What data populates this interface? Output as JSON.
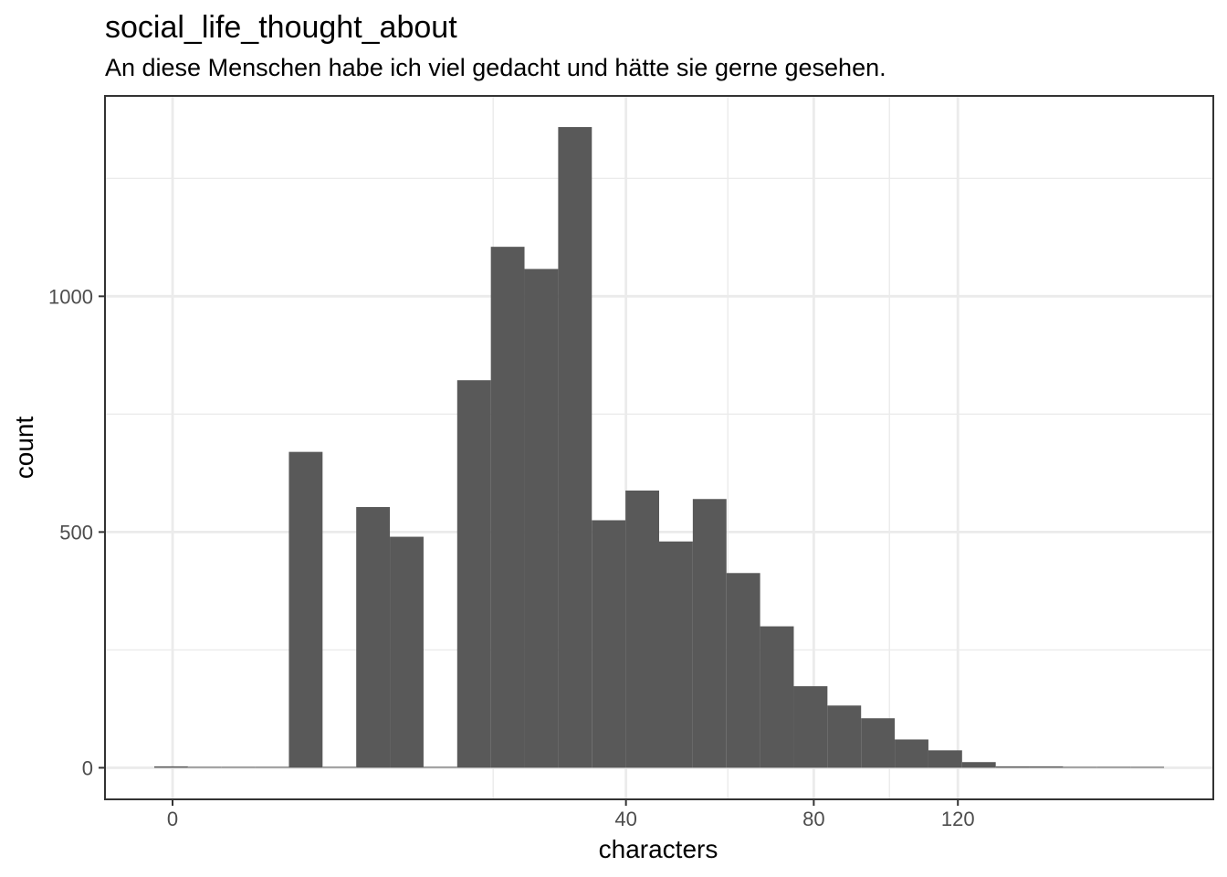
{
  "chart_data": {
    "type": "bar",
    "title": "social_life_thought_about",
    "subtitle": "An diese Menschen habe ich viel gedacht und hätte sie gerne gesehen.",
    "xlabel": "characters",
    "ylabel": "count",
    "x_scale": "sqrt",
    "x_ticks": [
      0,
      40,
      80,
      120
    ],
    "x_tick_labels": [
      "0",
      "40",
      "80",
      "120"
    ],
    "y_ticks": [
      0,
      500,
      1000
    ],
    "y_tick_labels": [
      "0",
      "500",
      "1000"
    ],
    "ylim": [
      -67,
      1425
    ],
    "grid": true,
    "bins": [
      {
        "from_sqrt": -0.255,
        "to_sqrt": 0.2145,
        "count": 3
      },
      {
        "from_sqrt": 0.2145,
        "to_sqrt": 0.684,
        "count": 0
      },
      {
        "from_sqrt": 0.684,
        "to_sqrt": 1.1535,
        "count": 0
      },
      {
        "from_sqrt": 1.1535,
        "to_sqrt": 1.623,
        "count": 0
      },
      {
        "from_sqrt": 1.623,
        "to_sqrt": 2.0925,
        "count": 670
      },
      {
        "from_sqrt": 2.0925,
        "to_sqrt": 2.562,
        "count": 0
      },
      {
        "from_sqrt": 2.562,
        "to_sqrt": 3.0315,
        "count": 553
      },
      {
        "from_sqrt": 3.0315,
        "to_sqrt": 3.501,
        "count": 490
      },
      {
        "from_sqrt": 3.501,
        "to_sqrt": 3.9705,
        "count": 0
      },
      {
        "from_sqrt": 3.9705,
        "to_sqrt": 4.44,
        "count": 822
      },
      {
        "from_sqrt": 4.44,
        "to_sqrt": 4.9095,
        "count": 1105
      },
      {
        "from_sqrt": 4.9095,
        "to_sqrt": 5.379,
        "count": 1058
      },
      {
        "from_sqrt": 5.379,
        "to_sqrt": 5.8485,
        "count": 1359
      },
      {
        "from_sqrt": 5.8485,
        "to_sqrt": 6.318,
        "count": 525
      },
      {
        "from_sqrt": 6.318,
        "to_sqrt": 6.7875,
        "count": 588
      },
      {
        "from_sqrt": 6.7875,
        "to_sqrt": 7.257,
        "count": 480
      },
      {
        "from_sqrt": 7.257,
        "to_sqrt": 7.7265,
        "count": 570
      },
      {
        "from_sqrt": 7.7265,
        "to_sqrt": 8.196,
        "count": 413
      },
      {
        "from_sqrt": 8.196,
        "to_sqrt": 8.6655,
        "count": 300
      },
      {
        "from_sqrt": 8.6655,
        "to_sqrt": 9.135,
        "count": 173
      },
      {
        "from_sqrt": 9.135,
        "to_sqrt": 9.6045,
        "count": 132
      },
      {
        "from_sqrt": 9.6045,
        "to_sqrt": 10.074,
        "count": 105
      },
      {
        "from_sqrt": 10.074,
        "to_sqrt": 10.5435,
        "count": 60
      },
      {
        "from_sqrt": 10.5435,
        "to_sqrt": 11.013,
        "count": 37
      },
      {
        "from_sqrt": 11.013,
        "to_sqrt": 11.4825,
        "count": 12
      },
      {
        "from_sqrt": 11.4825,
        "to_sqrt": 11.952,
        "count": 3
      },
      {
        "from_sqrt": 11.952,
        "to_sqrt": 12.4215,
        "count": 3
      },
      {
        "from_sqrt": 12.4215,
        "to_sqrt": 12.891,
        "count": 0
      },
      {
        "from_sqrt": 12.891,
        "to_sqrt": 13.3605,
        "count": 2
      },
      {
        "from_sqrt": 13.3605,
        "to_sqrt": 13.83,
        "count": 0
      }
    ],
    "bar_color": "#595959"
  }
}
